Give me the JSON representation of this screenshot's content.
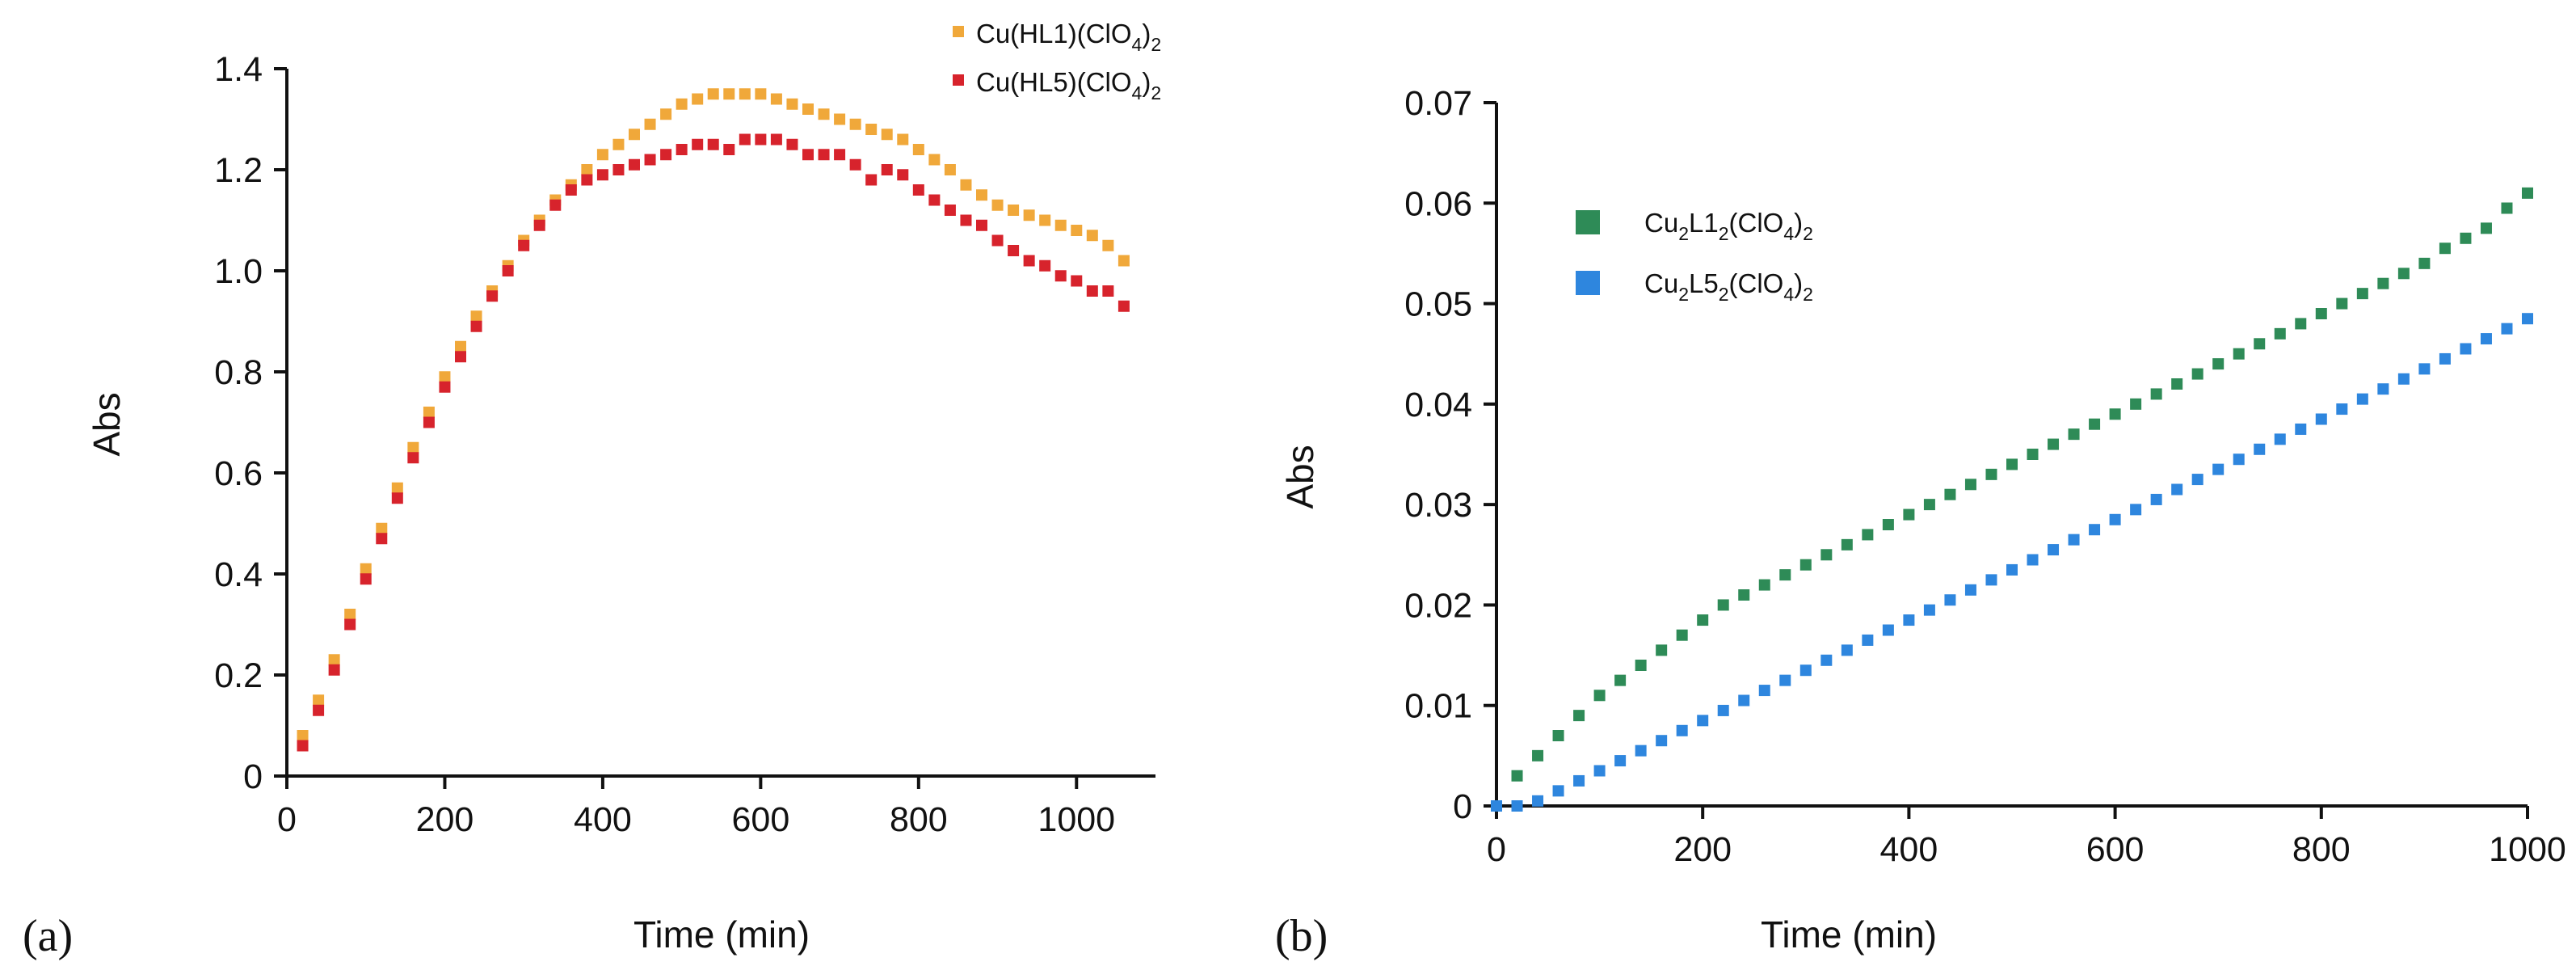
{
  "chart_data": [
    {
      "type": "scatter",
      "panel_label": "(a)",
      "xlabel": "Time (min)",
      "ylabel": "Abs",
      "xlim": [
        0,
        1100
      ],
      "ylim": [
        0,
        1.4
      ],
      "xticks": [
        "0",
        "200",
        "400",
        "600",
        "800",
        "1000"
      ],
      "yticks": [
        "0",
        "0.2",
        "0.4",
        "0.6",
        "0.8",
        "1.0",
        "1.2",
        "1.4"
      ],
      "legend_position": "top-right",
      "series": [
        {
          "name": "Cu(HL1)(ClO4)2",
          "legend_main": "Cu(HL1)(ClO",
          "legend_sub1": "4",
          "legend_mid": ")",
          "legend_sub2": "2",
          "color": "#F0A83A",
          "x": [
            20,
            40,
            60,
            80,
            100,
            120,
            140,
            160,
            180,
            200,
            220,
            240,
            260,
            280,
            300,
            320,
            340,
            360,
            380,
            400,
            420,
            440,
            460,
            480,
            500,
            520,
            540,
            560,
            580,
            600,
            620,
            640,
            660,
            680,
            700,
            720,
            740,
            760,
            780,
            800,
            820,
            840,
            860,
            880,
            900,
            920,
            940,
            960,
            980,
            1000,
            1020,
            1040,
            1060
          ],
          "y": [
            0.08,
            0.15,
            0.23,
            0.32,
            0.41,
            0.49,
            0.57,
            0.65,
            0.72,
            0.79,
            0.85,
            0.91,
            0.96,
            1.01,
            1.06,
            1.1,
            1.14,
            1.17,
            1.2,
            1.23,
            1.25,
            1.27,
            1.29,
            1.31,
            1.33,
            1.34,
            1.35,
            1.35,
            1.35,
            1.35,
            1.34,
            1.33,
            1.32,
            1.31,
            1.3,
            1.29,
            1.28,
            1.27,
            1.26,
            1.24,
            1.22,
            1.2,
            1.17,
            1.15,
            1.13,
            1.12,
            1.11,
            1.1,
            1.09,
            1.08,
            1.07,
            1.05,
            1.02
          ]
        },
        {
          "name": "Cu(HL5)(ClO4)2",
          "legend_main": "Cu(HL5)(ClO",
          "legend_sub1": "4",
          "legend_mid": ")",
          "legend_sub2": "2",
          "color": "#D7232C",
          "x": [
            20,
            40,
            60,
            80,
            100,
            120,
            140,
            160,
            180,
            200,
            220,
            240,
            260,
            280,
            300,
            320,
            340,
            360,
            380,
            400,
            420,
            440,
            460,
            480,
            500,
            520,
            540,
            560,
            580,
            600,
            620,
            640,
            660,
            680,
            700,
            720,
            740,
            760,
            780,
            800,
            820,
            840,
            860,
            880,
            900,
            920,
            940,
            960,
            980,
            1000,
            1020,
            1040,
            1060
          ],
          "y": [
            0.06,
            0.13,
            0.21,
            0.3,
            0.39,
            0.47,
            0.55,
            0.63,
            0.7,
            0.77,
            0.83,
            0.89,
            0.95,
            1.0,
            1.05,
            1.09,
            1.13,
            1.16,
            1.18,
            1.19,
            1.2,
            1.21,
            1.22,
            1.23,
            1.24,
            1.25,
            1.25,
            1.24,
            1.26,
            1.26,
            1.26,
            1.25,
            1.23,
            1.23,
            1.23,
            1.21,
            1.18,
            1.2,
            1.19,
            1.16,
            1.14,
            1.12,
            1.1,
            1.09,
            1.06,
            1.04,
            1.02,
            1.01,
            0.99,
            0.98,
            0.96,
            0.96,
            0.93
          ]
        }
      ]
    },
    {
      "type": "scatter",
      "panel_label": "(b)",
      "xlabel": "Time (min)",
      "ylabel": "Abs",
      "xlim": [
        0,
        1000
      ],
      "ylim": [
        0,
        0.07
      ],
      "xticks": [
        "0",
        "200",
        "400",
        "600",
        "800",
        "1000"
      ],
      "yticks": [
        "0",
        "0.01",
        "0.02",
        "0.03",
        "0.04",
        "0.05",
        "0.06",
        "0.07"
      ],
      "legend_position": "top-left",
      "series": [
        {
          "name": "Cu2L12(ClO4)2",
          "legend_parts": [
            "Cu",
            "2",
            "L1",
            "2",
            "(ClO",
            "4",
            ")",
            "2"
          ],
          "color": "#2E8B57",
          "x": [
            0,
            20,
            40,
            60,
            80,
            100,
            120,
            140,
            160,
            180,
            200,
            220,
            240,
            260,
            280,
            300,
            320,
            340,
            360,
            380,
            400,
            420,
            440,
            460,
            480,
            500,
            520,
            540,
            560,
            580,
            600,
            620,
            640,
            660,
            680,
            700,
            720,
            740,
            760,
            780,
            800,
            820,
            840,
            860,
            880,
            900,
            920,
            940,
            960,
            980,
            1000
          ],
          "y": [
            0.0,
            0.003,
            0.005,
            0.007,
            0.009,
            0.011,
            0.0125,
            0.014,
            0.0155,
            0.017,
            0.0185,
            0.02,
            0.021,
            0.022,
            0.023,
            0.024,
            0.025,
            0.026,
            0.027,
            0.028,
            0.029,
            0.03,
            0.031,
            0.032,
            0.033,
            0.034,
            0.035,
            0.036,
            0.037,
            0.038,
            0.039,
            0.04,
            0.041,
            0.042,
            0.043,
            0.044,
            0.045,
            0.046,
            0.047,
            0.048,
            0.049,
            0.05,
            0.051,
            0.052,
            0.053,
            0.054,
            0.0555,
            0.0565,
            0.0575,
            0.0595,
            0.061
          ]
        },
        {
          "name": "Cu2L52(ClO4)2",
          "legend_parts": [
            "Cu",
            "2",
            "L5",
            "2",
            "(ClO",
            "4",
            ")",
            "2"
          ],
          "color": "#2E86DE",
          "x": [
            0,
            20,
            40,
            60,
            80,
            100,
            120,
            140,
            160,
            180,
            200,
            220,
            240,
            260,
            280,
            300,
            320,
            340,
            360,
            380,
            400,
            420,
            440,
            460,
            480,
            500,
            520,
            540,
            560,
            580,
            600,
            620,
            640,
            660,
            680,
            700,
            720,
            740,
            760,
            780,
            800,
            820,
            840,
            860,
            880,
            900,
            920,
            940,
            960,
            980,
            1000
          ],
          "y": [
            0.0,
            0.0,
            0.0005,
            0.0015,
            0.0025,
            0.0035,
            0.0045,
            0.0055,
            0.0065,
            0.0075,
            0.0085,
            0.0095,
            0.0105,
            0.0115,
            0.0125,
            0.0135,
            0.0145,
            0.0155,
            0.0165,
            0.0175,
            0.0185,
            0.0195,
            0.0205,
            0.0215,
            0.0225,
            0.0235,
            0.0245,
            0.0255,
            0.0265,
            0.0275,
            0.0285,
            0.0295,
            0.0305,
            0.0315,
            0.0325,
            0.0335,
            0.0345,
            0.0355,
            0.0365,
            0.0375,
            0.0385,
            0.0395,
            0.0405,
            0.0415,
            0.0425,
            0.0435,
            0.0445,
            0.0455,
            0.0465,
            0.0475,
            0.0485
          ]
        }
      ]
    }
  ]
}
